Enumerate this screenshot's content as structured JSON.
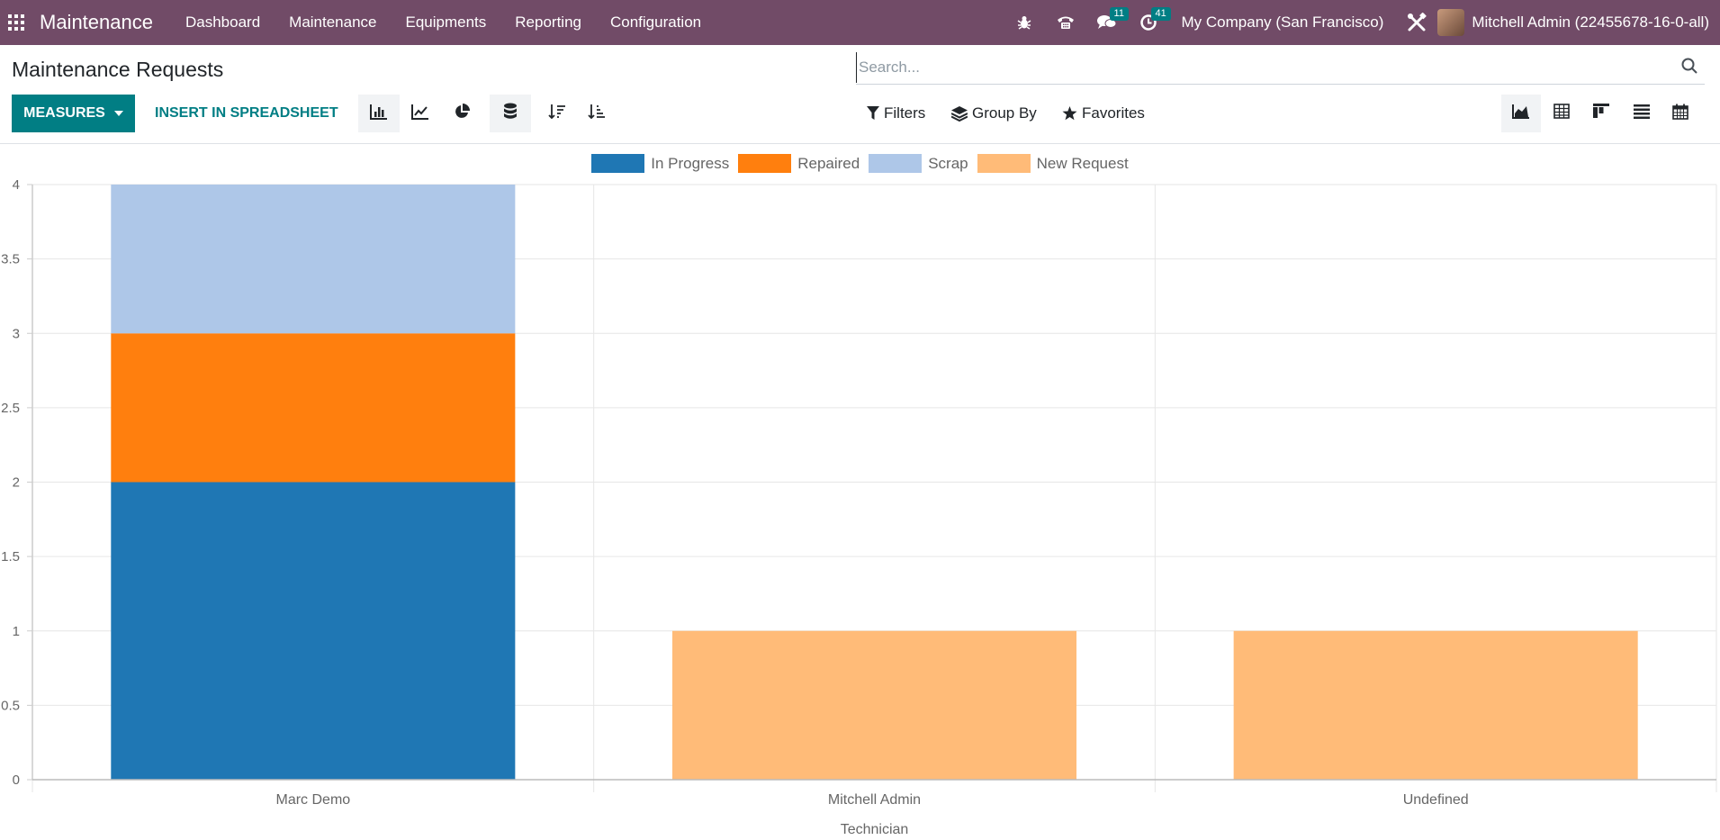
{
  "navbar": {
    "app_title": "Maintenance",
    "menu": [
      "Dashboard",
      "Maintenance",
      "Equipments",
      "Reporting",
      "Configuration"
    ],
    "messages_count": "11",
    "activities_count": "41",
    "company": "My Company (San Francisco)",
    "user": "Mitchell Admin (22455678-16-0-all)"
  },
  "control_panel": {
    "title": "Maintenance Requests",
    "search_placeholder": "Search...",
    "measures_label": "MEASURES",
    "spreadsheet_label": "INSERT IN SPREADSHEET",
    "filters_label": "Filters",
    "group_by_label": "Group By",
    "favorites_label": "Favorites"
  },
  "colors": {
    "navbar": "#714B67",
    "primary": "#017E84"
  },
  "chart_data": {
    "type": "bar",
    "stacked": true,
    "categories": [
      "Marc Demo",
      "Mitchell Admin",
      "Undefined"
    ],
    "series": [
      {
        "name": "In Progress",
        "color": "#1f77b4",
        "values": [
          2,
          0,
          0
        ]
      },
      {
        "name": "Repaired",
        "color": "#ff7f0e",
        "values": [
          1,
          0,
          0
        ]
      },
      {
        "name": "Scrap",
        "color": "#aec7e8",
        "values": [
          1,
          0,
          0
        ]
      },
      {
        "name": "New Request",
        "color": "#ffbb78",
        "values": [
          0,
          1,
          1
        ]
      }
    ],
    "xlabel": "Technician",
    "ylabel": "",
    "ylim": [
      0,
      4
    ],
    "yticks": [
      "0",
      "0.5",
      "1",
      "1.5",
      "2",
      "2.5",
      "3",
      "3.5",
      "4"
    ],
    "legend_position": "top",
    "grid": true
  }
}
